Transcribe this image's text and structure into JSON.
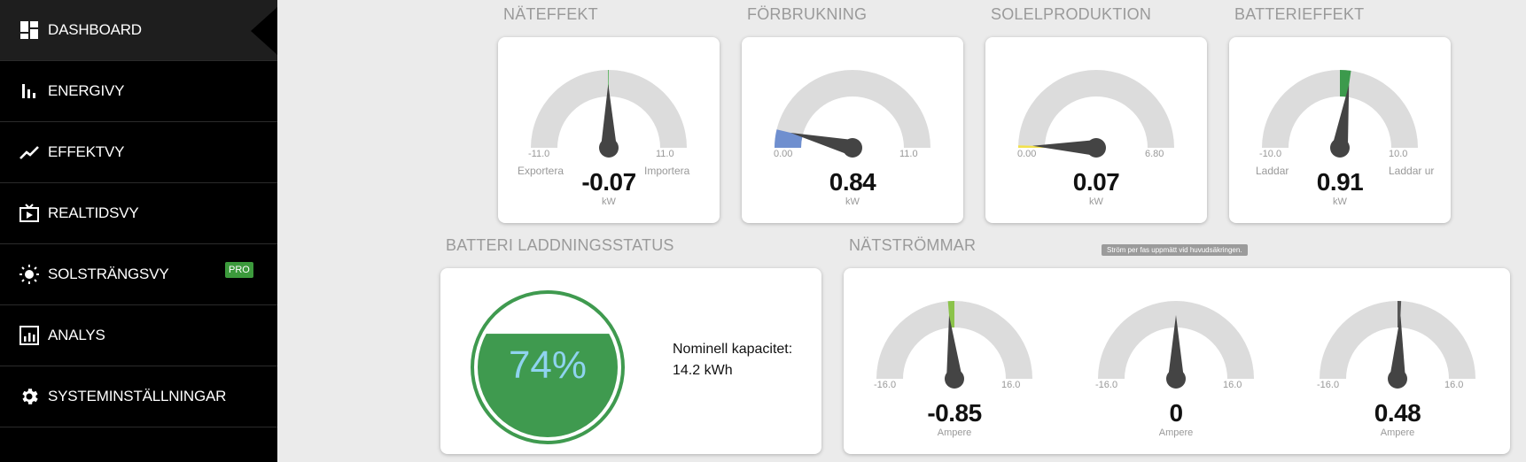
{
  "sidebar": {
    "items": [
      {
        "label": "DASHBOARD",
        "icon": "dashboard-icon"
      },
      {
        "label": "ENERGIVY",
        "icon": "bar-chart-icon"
      },
      {
        "label": "EFFEKTVY",
        "icon": "trend-line-icon"
      },
      {
        "label": "REALTIDSVY",
        "icon": "tv-play-icon"
      },
      {
        "label": "SOLSTRÄNGSVY",
        "icon": "sun-icon",
        "badge": "PRO"
      },
      {
        "label": "ANALYS",
        "icon": "analytics-icon"
      },
      {
        "label": "SYSTEMINSTÄLLNINGAR",
        "icon": "gear-icon"
      }
    ]
  },
  "gauges": [
    {
      "title": "NÄTEFFEKT",
      "value": "-0.07",
      "unit": "kW",
      "min": "-11.0",
      "max": "11.0",
      "left_label": "Exportera",
      "right_label": "Importera",
      "fraction": 0.497,
      "fill_color": "#4caf50"
    },
    {
      "title": "FÖRBRUKNING",
      "value": "0.84",
      "unit": "kW",
      "min": "0.00",
      "max": "11.0",
      "fraction": 0.076,
      "fill_color": "#6f8fcf"
    },
    {
      "title": "SOLELPRODUKTION",
      "value": "0.07",
      "unit": "kW",
      "min": "0.00",
      "max": "6.80",
      "fraction": 0.01,
      "fill_color": "#f2e14c"
    },
    {
      "title": "BATTERIEFFEKT",
      "value": "0.91",
      "unit": "kW",
      "min": "-10.0",
      "max": "10.0",
      "left_label": "Laddar",
      "right_label": "Laddar ur",
      "fraction": 0.5455,
      "fill_color": "#3c9a4c"
    }
  ],
  "battery": {
    "title": "BATTERI LADDNINGSSTATUS",
    "percent": "74%",
    "level": 0.74,
    "capacity_label": "Nominell kapacitet:",
    "capacity_value": "14.2 kWh",
    "color": "#3f9a4f"
  },
  "grid_currents": {
    "title": "NÄTSTRÖMMAR",
    "tooltip": "Ström per fas uppmätt vid huvudsäkringen.",
    "phases": [
      {
        "value": "-0.85",
        "unit": "Ampere",
        "min": "-16.0",
        "max": "16.0",
        "fraction": 0.4734,
        "fill_color": "#8bc34a"
      },
      {
        "value": "0",
        "unit": "Ampere",
        "min": "-16.0",
        "max": "16.0",
        "fraction": 0.5,
        "fill_color": "#444444"
      },
      {
        "value": "0.48",
        "unit": "Ampere",
        "min": "-16.0",
        "max": "16.0",
        "fraction": 0.515,
        "fill_color": "#555555"
      }
    ]
  }
}
